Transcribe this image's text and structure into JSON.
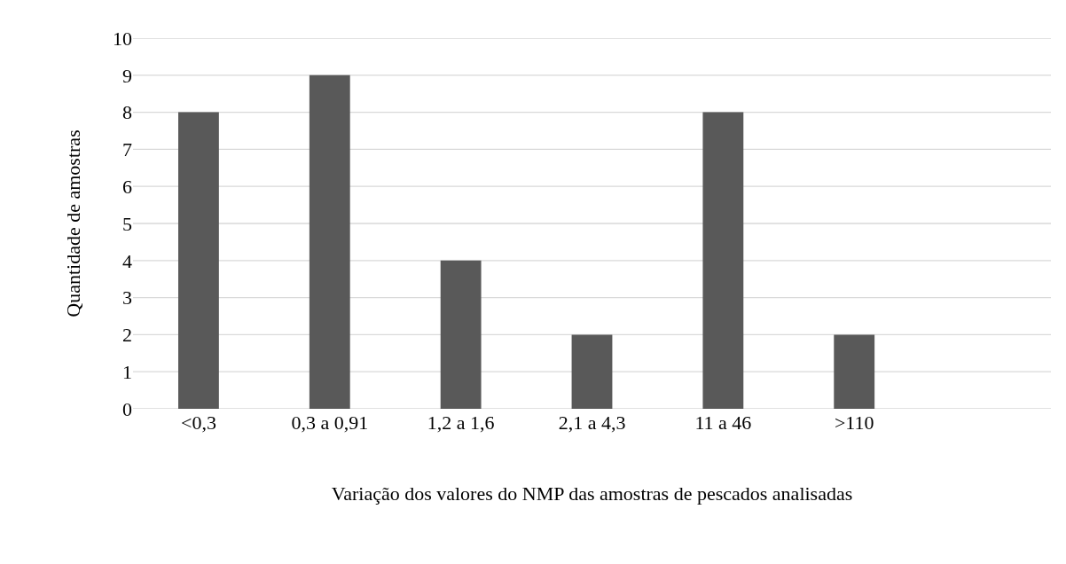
{
  "chart_data": {
    "type": "bar",
    "xlabel": "Variação dos valores do NMP das amostras de pescados analisadas",
    "ylabel": "Quantidade de amostras",
    "categories": [
      "<0,3",
      "0,3 a 0,91",
      "1,2 a 1,6",
      "2,1 a 4,3",
      "11 a 46",
      ">110",
      null
    ],
    "values": [
      8,
      9,
      4,
      2,
      8,
      2,
      null
    ],
    "color": "#595959",
    "ylim": [
      0,
      10
    ],
    "yticks": [
      0,
      1,
      2,
      3,
      4,
      5,
      6,
      7,
      8,
      9,
      10
    ],
    "grid": "y"
  }
}
